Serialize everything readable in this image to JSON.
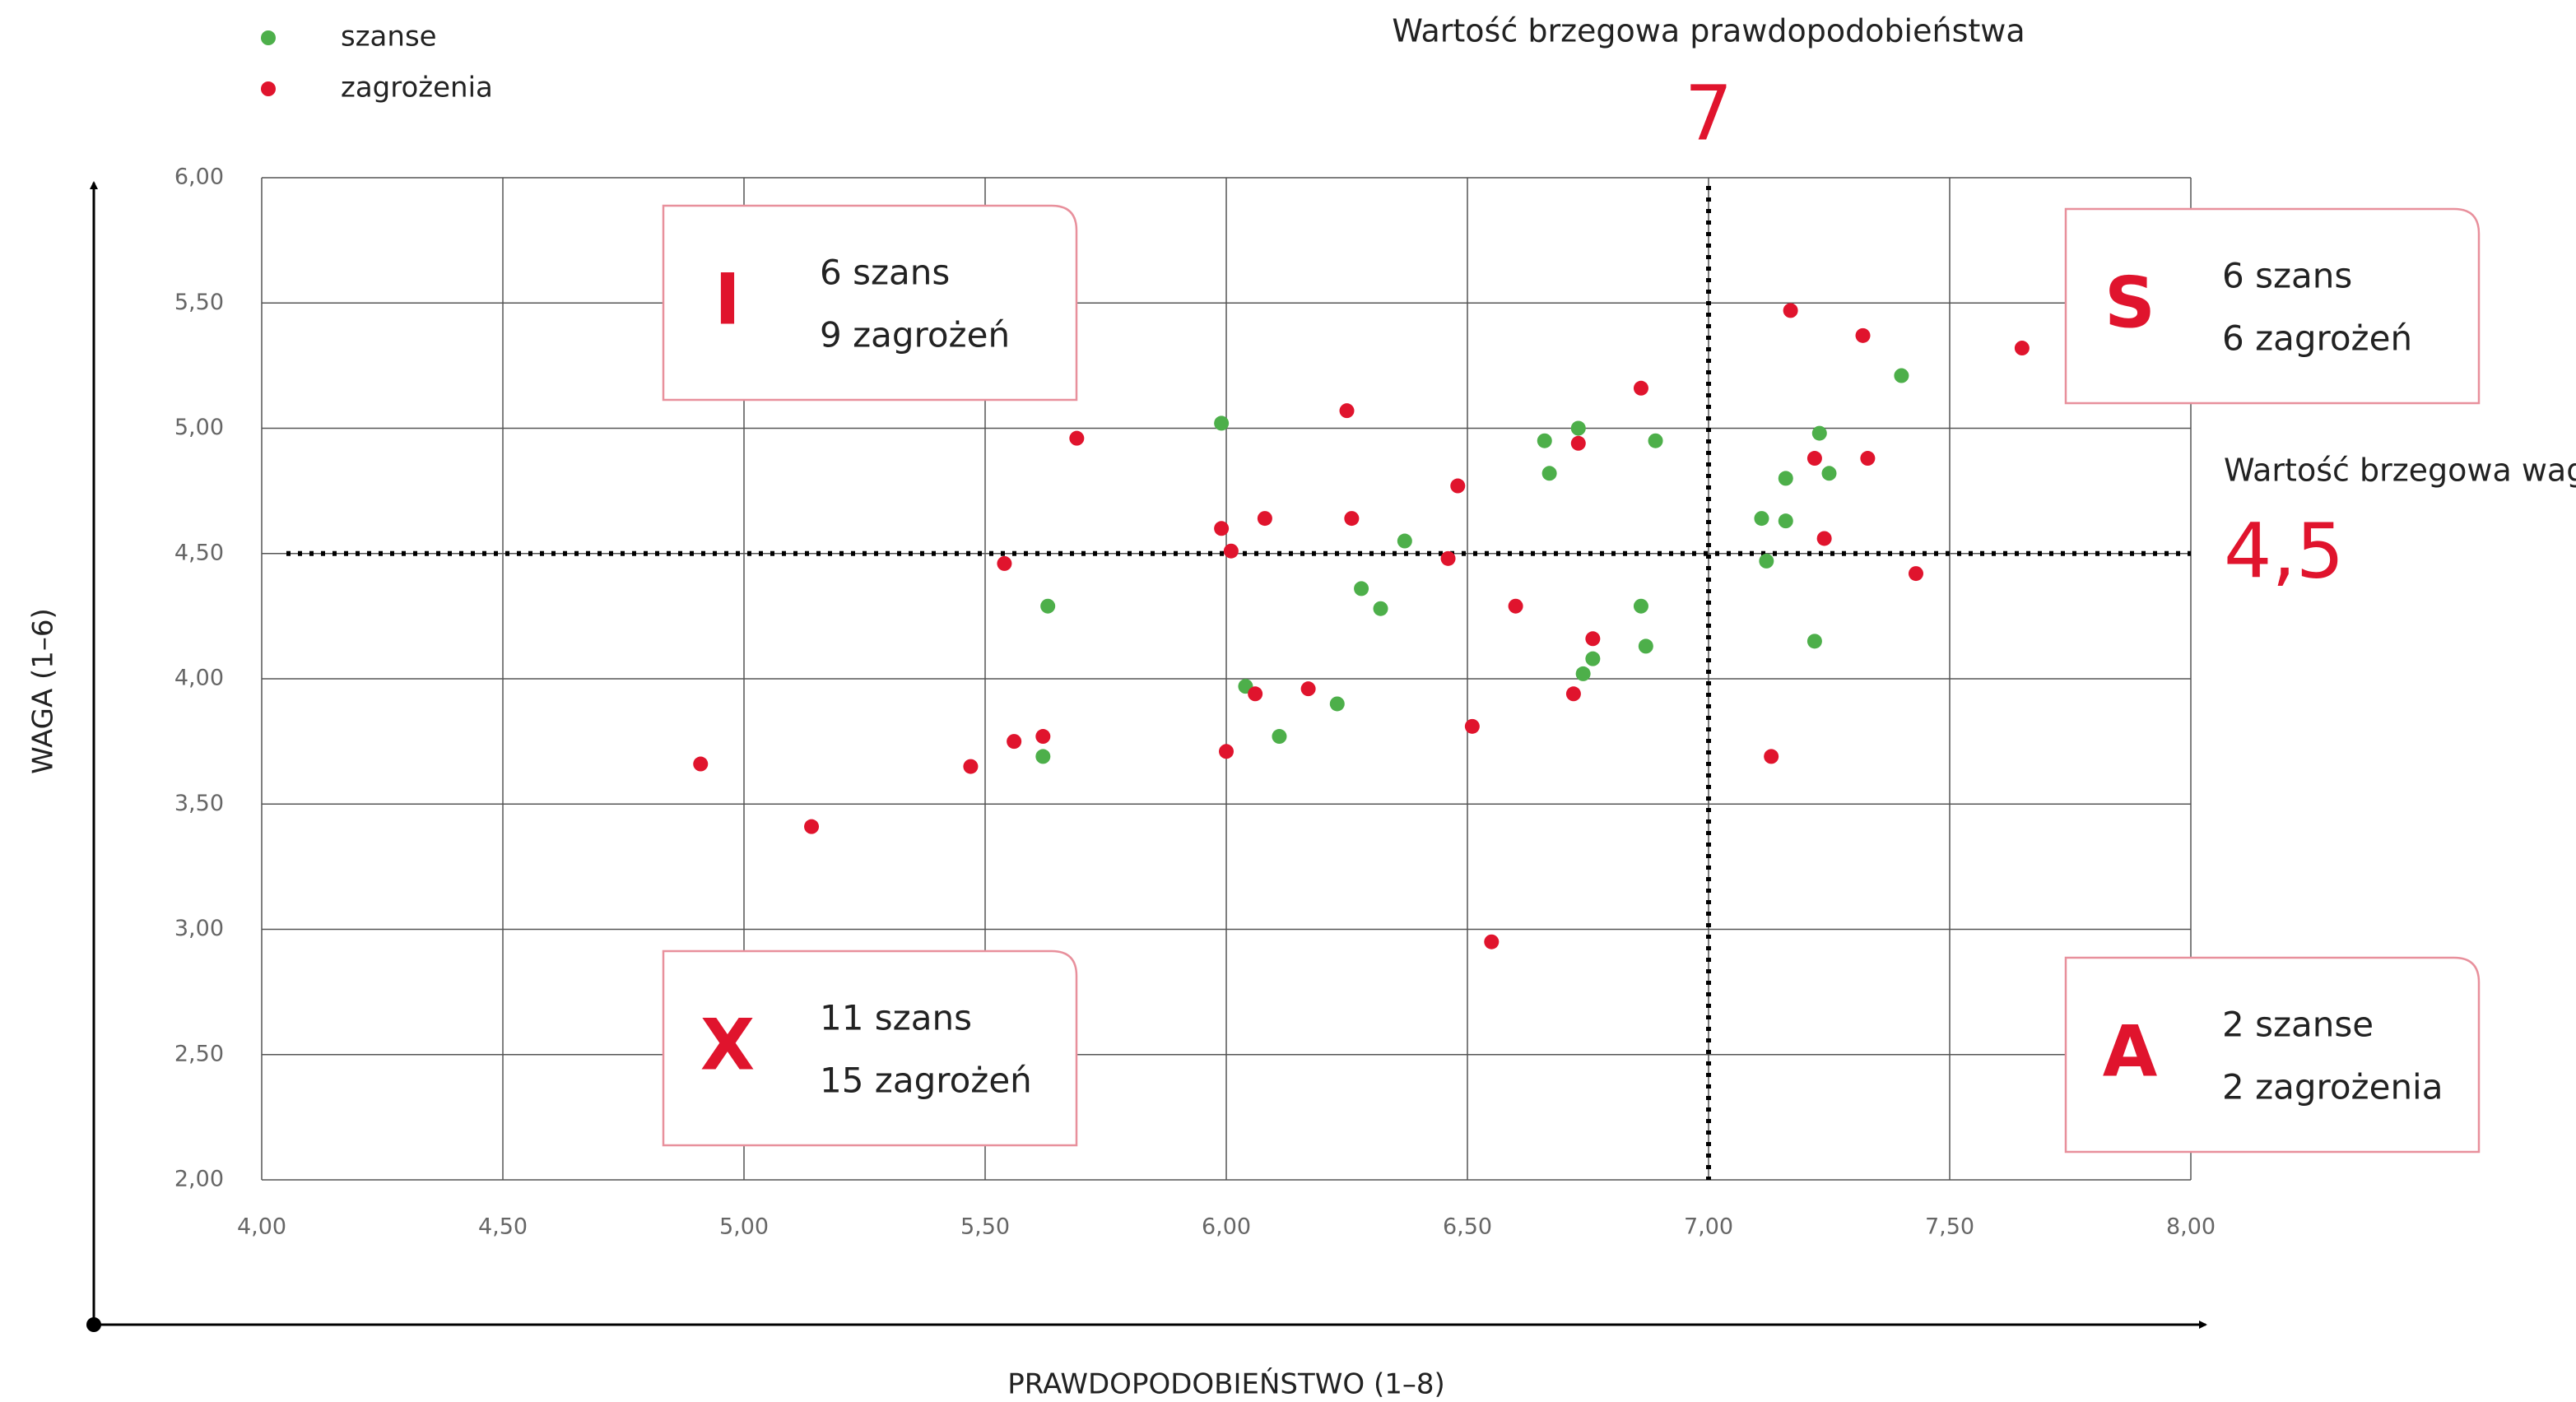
{
  "chart_data": {
    "type": "scatter",
    "x_label": "PRAWDOPODOBIEŃSTWO (1–8)",
    "y_label": "WAGA (1–6)",
    "xlim": [
      4,
      8
    ],
    "ylim": [
      2,
      6
    ],
    "xticks": [
      {
        "value": 4,
        "label": "4,00"
      },
      {
        "value": 4.5,
        "label": "4,50"
      },
      {
        "value": 5,
        "label": "5,00"
      },
      {
        "value": 5.5,
        "label": "5,50"
      },
      {
        "value": 6,
        "label": "6,00"
      },
      {
        "value": 6.5,
        "label": "6,50"
      },
      {
        "value": 7,
        "label": "7,00"
      },
      {
        "value": 7.5,
        "label": "7,50"
      },
      {
        "value": 8,
        "label": "8,00"
      }
    ],
    "yticks": [
      {
        "value": 2,
        "label": "2,00"
      },
      {
        "value": 2.5,
        "label": "2,50"
      },
      {
        "value": 3,
        "label": "3,00"
      },
      {
        "value": 3.5,
        "label": "3,50"
      },
      {
        "value": 4,
        "label": "4,00"
      },
      {
        "value": 4.5,
        "label": "4,50"
      },
      {
        "value": 5,
        "label": "5,00"
      },
      {
        "value": 5.5,
        "label": "5,50"
      },
      {
        "value": 6,
        "label": "6,00"
      }
    ],
    "grid": true,
    "legend": "top-left",
    "series": [
      {
        "name": "szanse",
        "color": "#4daf4a",
        "x": [
          5.99,
          5.63,
          5.62,
          6.04,
          6.11,
          6.23,
          6.28,
          6.32,
          6.37,
          6.66,
          6.67,
          6.73,
          6.89,
          6.74,
          6.76,
          6.86,
          6.87,
          7.11,
          7.12,
          7.16,
          7.16,
          7.23,
          7.25,
          7.22,
          7.4
        ],
        "values": [
          5.02,
          4.29,
          3.69,
          3.97,
          3.77,
          3.9,
          4.36,
          4.28,
          4.55,
          4.95,
          4.82,
          5.0,
          4.95,
          4.02,
          4.08,
          4.29,
          4.13,
          4.64,
          4.47,
          4.63,
          4.8,
          4.98,
          4.82,
          4.15,
          5.21
        ]
      },
      {
        "name": "zagrożenia",
        "color": "#e0142d",
        "x": [
          4.91,
          5.14,
          5.47,
          5.56,
          5.62,
          5.54,
          5.69,
          5.99,
          6.01,
          6.0,
          6.06,
          6.08,
          6.17,
          6.25,
          6.26,
          6.48,
          6.46,
          6.51,
          6.6,
          6.55,
          6.76,
          6.73,
          6.72,
          6.86,
          7.17,
          7.32,
          7.22,
          7.33,
          7.24,
          7.65,
          7.43,
          7.13
        ],
        "values": [
          3.66,
          3.41,
          3.65,
          3.75,
          3.77,
          4.46,
          4.96,
          4.6,
          4.51,
          3.71,
          3.94,
          4.64,
          3.96,
          5.07,
          4.64,
          4.77,
          4.48,
          3.81,
          4.29,
          2.95,
          4.16,
          4.94,
          3.94,
          5.16,
          5.47,
          5.37,
          4.88,
          4.88,
          4.56,
          5.32,
          4.42,
          3.69
        ]
      }
    ],
    "x_threshold": {
      "label": "Wartość brzegowa prawdopodobieństwa",
      "value": 7
    },
    "y_threshold": {
      "label": "Wartość brzegowa wagi",
      "value": 4.5,
      "value_label": "4,5"
    },
    "quadrants": [
      {
        "letter": "I",
        "lines": [
          "6 szans",
          "9 zagrożeń"
        ]
      },
      {
        "letter": "S",
        "lines": [
          "6 szans",
          "6 zagrożeń"
        ]
      },
      {
        "letter": "X",
        "lines": [
          "11 szans",
          "15 zagrożeń"
        ]
      },
      {
        "letter": "A",
        "lines": [
          "2 szanse",
          "2 zagrożenia"
        ]
      }
    ]
  }
}
